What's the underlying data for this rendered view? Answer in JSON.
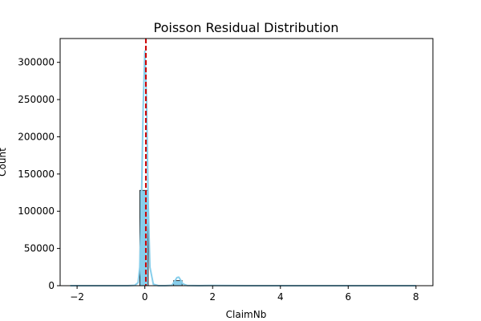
{
  "chart_data": {
    "type": "bar",
    "title": "Poisson Residual Distribution",
    "xlabel": "ClaimNb",
    "ylabel": "Count",
    "xlim": [
      -2.5,
      8.5
    ],
    "ylim": [
      0,
      332000
    ],
    "xticks": [
      -2,
      0,
      2,
      4,
      6,
      8
    ],
    "yticks": [
      0,
      50000,
      100000,
      150000,
      200000,
      250000,
      300000
    ],
    "grid": false,
    "bins": [
      {
        "x0": -0.15,
        "x1": 0.1,
        "count": 128000
      },
      {
        "x0": 0.85,
        "x1": 1.1,
        "count": 6800
      },
      {
        "x0": 1.85,
        "x1": 2.1,
        "count": 300
      }
    ],
    "kde": {
      "x": [
        -2.2,
        -1.0,
        -0.5,
        -0.3,
        -0.2,
        -0.15,
        -0.1,
        -0.05,
        0.0,
        0.05,
        0.1,
        0.15,
        0.25,
        0.4,
        0.6,
        0.8,
        0.88,
        0.95,
        1.0,
        1.05,
        1.12,
        1.25,
        1.6,
        2.0,
        3.0,
        5.0,
        8.0
      ],
      "y": [
        0,
        0,
        0,
        500,
        4000,
        25000,
        110000,
        240000,
        315000,
        250000,
        110000,
        25000,
        2000,
        0,
        0,
        500,
        6000,
        11000,
        11500,
        8000,
        2500,
        200,
        0,
        200,
        0,
        0,
        0
      ]
    },
    "reference_line": {
      "x": 0.03,
      "style": "dashed",
      "color": "#cc0000"
    },
    "colors": {
      "bar_fill": "#87ceeb",
      "bar_edge": "#000000",
      "kde_line": "#87ceeb"
    }
  }
}
